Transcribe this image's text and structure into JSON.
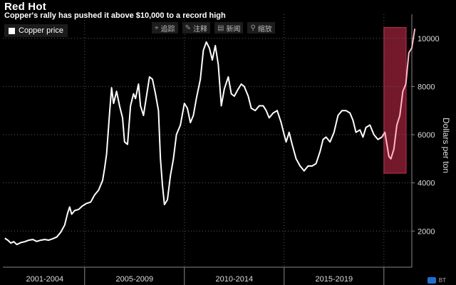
{
  "header": {
    "title": "Red Hot",
    "subtitle": "Copper's rally has pushed it above $10,000 to a record high"
  },
  "toolbar": {
    "items": [
      {
        "icon": "crosshair-icon",
        "glyph": "⌖",
        "label": "追踪"
      },
      {
        "icon": "pencil-icon",
        "glyph": "✎",
        "label": "注释"
      },
      {
        "icon": "news-icon",
        "glyph": "▤",
        "label": "新闻"
      },
      {
        "icon": "zoom-icon",
        "glyph": "⚲",
        "label": "缩放"
      }
    ]
  },
  "corner_badge": {
    "text": "BT"
  },
  "colors": {
    "background": "#000000",
    "line": "#ffffff",
    "highlight": "#8e1f35",
    "grid": "#666666"
  },
  "chart_data": {
    "type": "line",
    "title": "Red Hot",
    "subtitle": "Copper's rally has pushed it above $10,000 to a record high",
    "ylabel": "Dollars per ton",
    "ylim": [
      500,
      11000
    ],
    "xlim": [
      2000.9,
      2021.4
    ],
    "yticks": [
      2000,
      4000,
      6000,
      8000,
      10000
    ],
    "xcategories": [
      {
        "label": "2001-2004",
        "center": 2003.0
      },
      {
        "label": "2005-2009",
        "center": 2007.5
      },
      {
        "label": "2010-2014",
        "center": 2012.5
      },
      {
        "label": "2015-2019",
        "center": 2017.5
      }
    ],
    "xbounds": [
      2005.0,
      2010.0,
      2015.0,
      2020.0
    ],
    "grid": true,
    "legend": {
      "position": "top-left",
      "entries": [
        "Copper price"
      ]
    },
    "highlight": {
      "x": [
        2020.0,
        2021.75
      ],
      "y": [
        4400,
        10450
      ]
    },
    "series": [
      {
        "name": "Copper price",
        "points": [
          [
            2001.0,
            1700
          ],
          [
            2001.15,
            1620
          ],
          [
            2001.3,
            1500
          ],
          [
            2001.45,
            1560
          ],
          [
            2001.6,
            1440
          ],
          [
            2001.8,
            1520
          ],
          [
            2002.0,
            1560
          ],
          [
            2002.2,
            1620
          ],
          [
            2002.4,
            1650
          ],
          [
            2002.6,
            1570
          ],
          [
            2002.8,
            1620
          ],
          [
            2003.0,
            1650
          ],
          [
            2003.2,
            1620
          ],
          [
            2003.4,
            1680
          ],
          [
            2003.6,
            1750
          ],
          [
            2003.8,
            1950
          ],
          [
            2004.0,
            2250
          ],
          [
            2004.15,
            2750
          ],
          [
            2004.25,
            3000
          ],
          [
            2004.35,
            2700
          ],
          [
            2004.5,
            2850
          ],
          [
            2004.7,
            2900
          ],
          [
            2004.9,
            3050
          ],
          [
            2005.1,
            3150
          ],
          [
            2005.3,
            3200
          ],
          [
            2005.5,
            3500
          ],
          [
            2005.7,
            3700
          ],
          [
            2005.9,
            4100
          ],
          [
            2006.0,
            4600
          ],
          [
            2006.1,
            5200
          ],
          [
            2006.25,
            6900
          ],
          [
            2006.35,
            7950
          ],
          [
            2006.45,
            7300
          ],
          [
            2006.6,
            7800
          ],
          [
            2006.75,
            7200
          ],
          [
            2006.9,
            6700
          ],
          [
            2007.0,
            5700
          ],
          [
            2007.15,
            5600
          ],
          [
            2007.3,
            7200
          ],
          [
            2007.45,
            7700
          ],
          [
            2007.55,
            7500
          ],
          [
            2007.7,
            8100
          ],
          [
            2007.8,
            7200
          ],
          [
            2007.95,
            6800
          ],
          [
            2008.1,
            7600
          ],
          [
            2008.25,
            8400
          ],
          [
            2008.4,
            8300
          ],
          [
            2008.55,
            7700
          ],
          [
            2008.7,
            7000
          ],
          [
            2008.8,
            5000
          ],
          [
            2008.9,
            3900
          ],
          [
            2009.0,
            3100
          ],
          [
            2009.15,
            3300
          ],
          [
            2009.3,
            4300
          ],
          [
            2009.45,
            5000
          ],
          [
            2009.6,
            6000
          ],
          [
            2009.8,
            6400
          ],
          [
            2010.0,
            7300
          ],
          [
            2010.15,
            7100
          ],
          [
            2010.3,
            6500
          ],
          [
            2010.45,
            6800
          ],
          [
            2010.6,
            7500
          ],
          [
            2010.8,
            8300
          ],
          [
            2010.95,
            9500
          ],
          [
            2011.1,
            9850
          ],
          [
            2011.25,
            9600
          ],
          [
            2011.4,
            9100
          ],
          [
            2011.55,
            9700
          ],
          [
            2011.7,
            8900
          ],
          [
            2011.85,
            7200
          ],
          [
            2012.0,
            7900
          ],
          [
            2012.2,
            8400
          ],
          [
            2012.35,
            7700
          ],
          [
            2012.5,
            7600
          ],
          [
            2012.7,
            7900
          ],
          [
            2012.85,
            8100
          ],
          [
            2013.0,
            8000
          ],
          [
            2013.2,
            7600
          ],
          [
            2013.35,
            7100
          ],
          [
            2013.55,
            7000
          ],
          [
            2013.75,
            7200
          ],
          [
            2013.95,
            7200
          ],
          [
            2014.1,
            7000
          ],
          [
            2014.25,
            6700
          ],
          [
            2014.45,
            6900
          ],
          [
            2014.65,
            7000
          ],
          [
            2014.85,
            6500
          ],
          [
            2015.0,
            6000
          ],
          [
            2015.1,
            5700
          ],
          [
            2015.25,
            6100
          ],
          [
            2015.4,
            5600
          ],
          [
            2015.6,
            5000
          ],
          [
            2015.8,
            4700
          ],
          [
            2016.0,
            4500
          ],
          [
            2016.2,
            4700
          ],
          [
            2016.4,
            4700
          ],
          [
            2016.6,
            4800
          ],
          [
            2016.8,
            5300
          ],
          [
            2016.95,
            5800
          ],
          [
            2017.1,
            5900
          ],
          [
            2017.3,
            5700
          ],
          [
            2017.5,
            6100
          ],
          [
            2017.7,
            6800
          ],
          [
            2017.9,
            7000
          ],
          [
            2018.1,
            7000
          ],
          [
            2018.3,
            6900
          ],
          [
            2018.45,
            6600
          ],
          [
            2018.6,
            6100
          ],
          [
            2018.8,
            6200
          ],
          [
            2018.95,
            5900
          ],
          [
            2019.1,
            6300
          ],
          [
            2019.3,
            6400
          ],
          [
            2019.5,
            6000
          ],
          [
            2019.7,
            5800
          ],
          [
            2019.9,
            5900
          ],
          [
            2020.05,
            6100
          ],
          [
            2020.15,
            5600
          ],
          [
            2020.25,
            5100
          ],
          [
            2020.35,
            5000
          ],
          [
            2020.5,
            5400
          ],
          [
            2020.65,
            6400
          ],
          [
            2020.8,
            6800
          ],
          [
            2020.95,
            7800
          ],
          [
            2021.1,
            8100
          ],
          [
            2021.25,
            9400
          ],
          [
            2021.4,
            9600
          ],
          [
            2021.55,
            10400
          ]
        ]
      }
    ]
  }
}
